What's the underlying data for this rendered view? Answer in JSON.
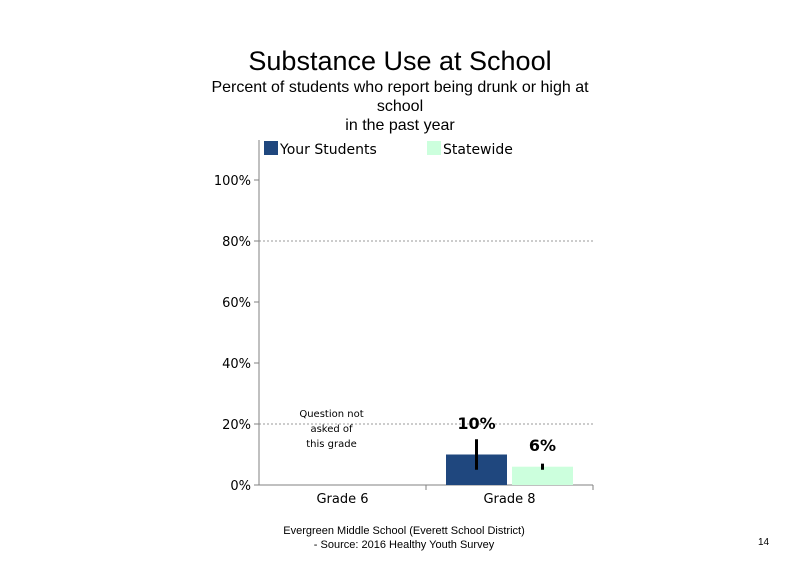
{
  "chart_data": {
    "type": "bar",
    "title": "Substance Use at School",
    "subtitle_lines": [
      "Percent of students who report being drunk or high at",
      "school",
      "in the past year"
    ],
    "categories": [
      "Grade 6",
      "Grade 8"
    ],
    "series": [
      {
        "name": "Your Students",
        "color": "#1f477e",
        "values": [
          null,
          10
        ],
        "error_low": [
          null,
          5
        ],
        "error_high": [
          null,
          15
        ]
      },
      {
        "name": "Statewide",
        "color": "#ccffdd",
        "values": [
          null,
          6
        ],
        "error_low": [
          null,
          5
        ],
        "error_high": [
          null,
          7
        ]
      }
    ],
    "data_labels": [
      "",
      "10%",
      "6%"
    ],
    "y_ticks": [
      "0%",
      "20%",
      "40%",
      "60%",
      "80%",
      "100%"
    ],
    "ylim": [
      0,
      100
    ],
    "gridlines": [
      20,
      80
    ],
    "legend_position": "top",
    "annotation": [
      "Question not",
      "asked of",
      "this grade"
    ]
  },
  "footer": {
    "line1": "Evergreen Middle School (Everett School District)",
    "line2": "- Source: 2016 Healthy  Youth Survey"
  },
  "page_number": "14"
}
